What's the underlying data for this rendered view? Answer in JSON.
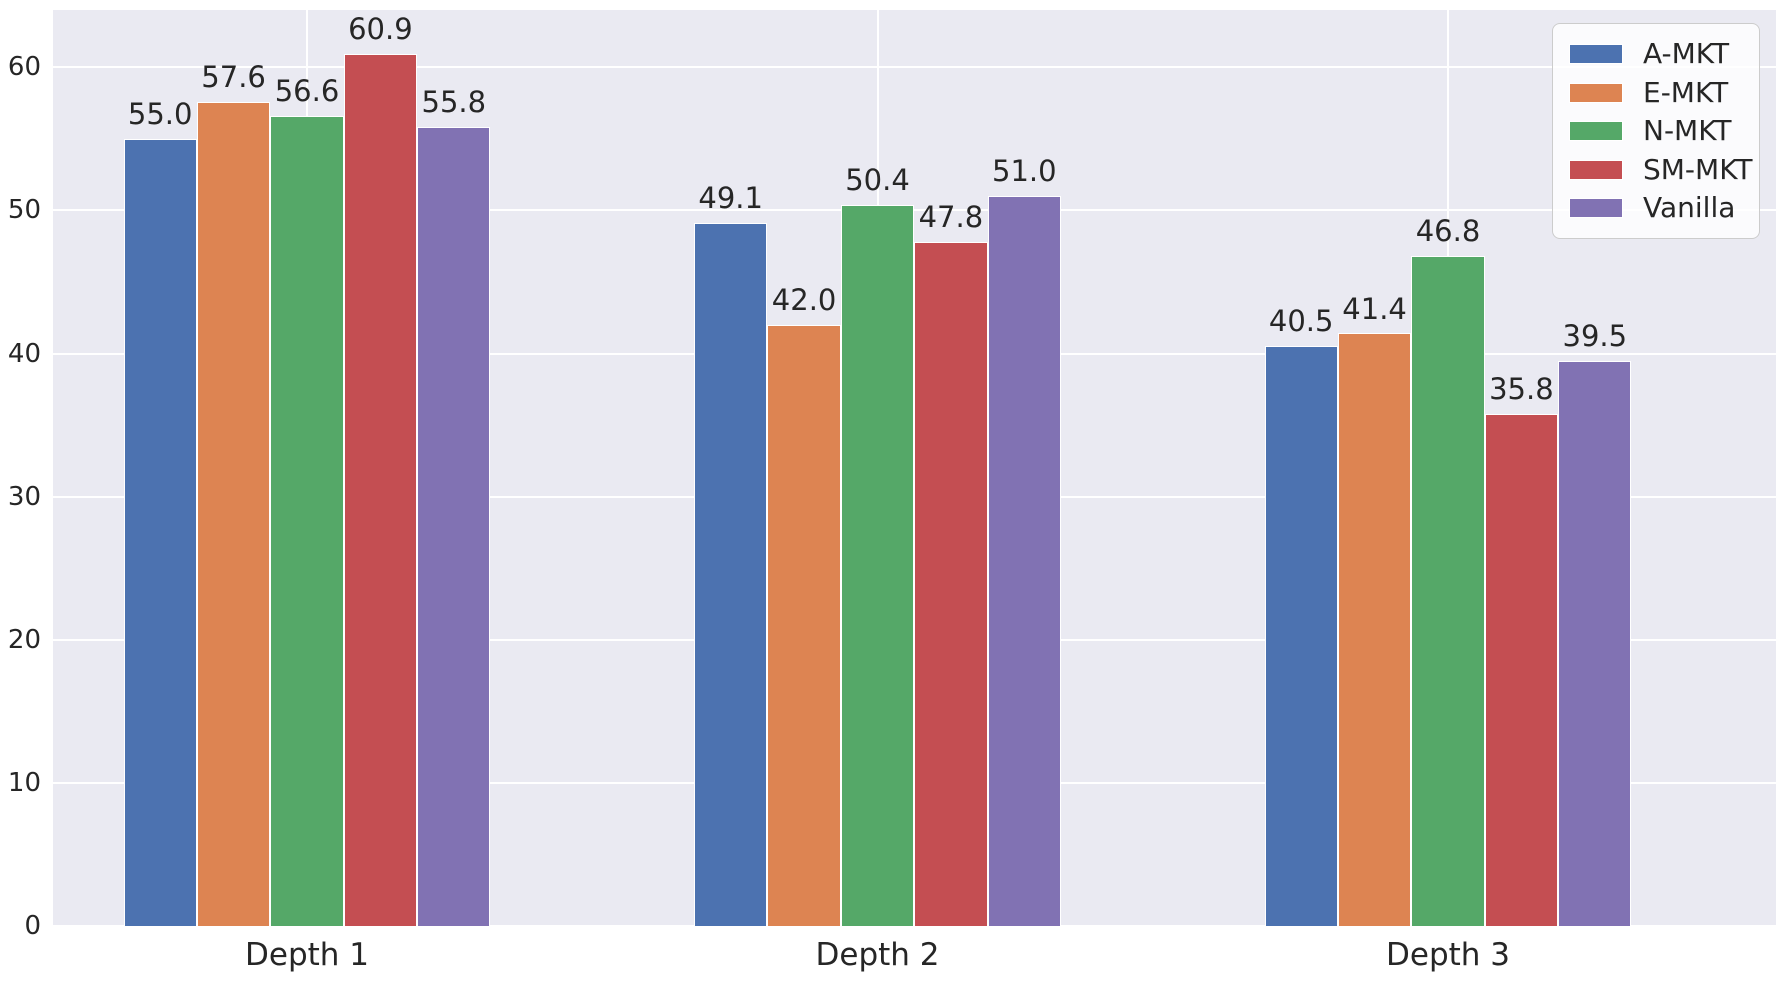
{
  "chart_data": {
    "type": "bar",
    "title": "",
    "xlabel": "",
    "ylabel": "",
    "categories": [
      "Depth 1",
      "Depth 2",
      "Depth 3"
    ],
    "series": [
      {
        "name": "A-MKT",
        "color": "#4c72b0",
        "values": [
          55.0,
          49.1,
          40.5
        ]
      },
      {
        "name": "E-MKT",
        "color": "#dd8452",
        "values": [
          57.6,
          42.0,
          41.4
        ]
      },
      {
        "name": "N-MKT",
        "color": "#55a868",
        "values": [
          56.6,
          50.4,
          46.8
        ]
      },
      {
        "name": "SM-MKT",
        "color": "#c44e52",
        "values": [
          60.9,
          47.8,
          35.8
        ]
      },
      {
        "name": "Vanilla",
        "color": "#8172b3",
        "values": [
          55.8,
          51.0,
          39.5
        ]
      }
    ],
    "bar_value_labels": {
      "Depth 1": [
        55.0,
        57.6,
        56.6,
        60.9,
        55.8
      ],
      "Depth 2": [
        49.1,
        42.0,
        50.4,
        47.8,
        51.0
      ],
      "Depth 3": [
        40.5,
        41.4,
        46.8,
        35.8,
        39.5
      ]
    },
    "value_label_decimals": 1,
    "yticks": [
      0,
      10,
      20,
      30,
      40,
      50,
      60
    ],
    "ylim": [
      0,
      64
    ],
    "grid": true,
    "legend_position": "upper right",
    "colors": {
      "plot_background": "#eaeaf2",
      "grid_color": "#ffffff",
      "text_color": "#262626",
      "legend_background": "#fbfbfd",
      "legend_border": "#cccccc"
    }
  }
}
